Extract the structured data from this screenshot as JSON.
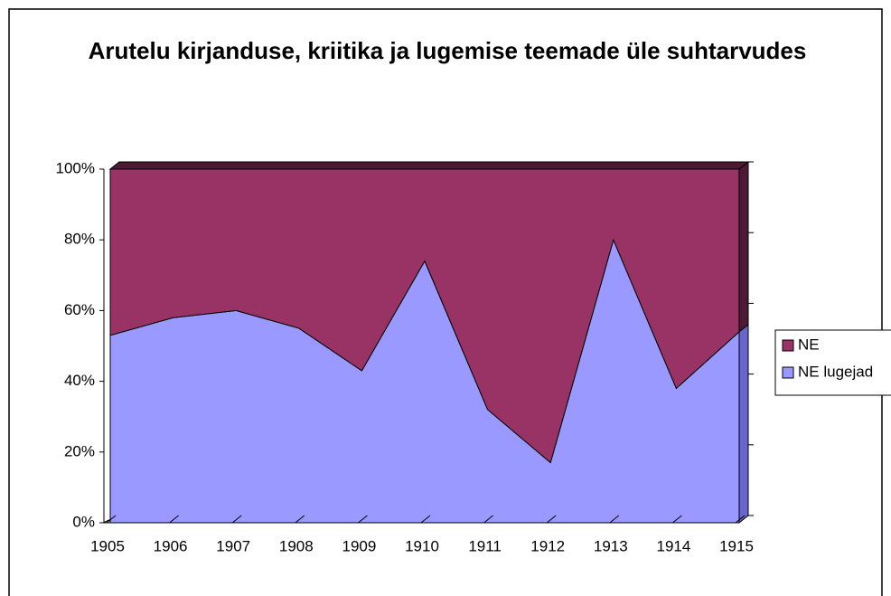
{
  "chart_data": {
    "type": "area_stacked_percent",
    "title": "Arutelu kirjanduse, kriitika ja lugemise teemade üle suhtarvudes",
    "categories": [
      "1905",
      "1906",
      "1907",
      "1908",
      "1909",
      "1910",
      "1911",
      "1912",
      "1913",
      "1914",
      "1915"
    ],
    "series": [
      {
        "name": "NE lugejad",
        "color": "#9999ff",
        "values": [
          53,
          58,
          60,
          55,
          43,
          74,
          32,
          17,
          80,
          38,
          54
        ]
      },
      {
        "name": "NE",
        "color": "#993366",
        "values": [
          47,
          42,
          40,
          45,
          57,
          26,
          68,
          83,
          20,
          62,
          46
        ]
      }
    ],
    "ylim": [
      0,
      100
    ],
    "yticks": [
      {
        "value": 0,
        "label": "0%"
      },
      {
        "value": 20,
        "label": "20%"
      },
      {
        "value": 40,
        "label": "40%"
      },
      {
        "value": 60,
        "label": "60%"
      },
      {
        "value": 80,
        "label": "80%"
      },
      {
        "value": 100,
        "label": "100%"
      }
    ],
    "legend": "right"
  }
}
